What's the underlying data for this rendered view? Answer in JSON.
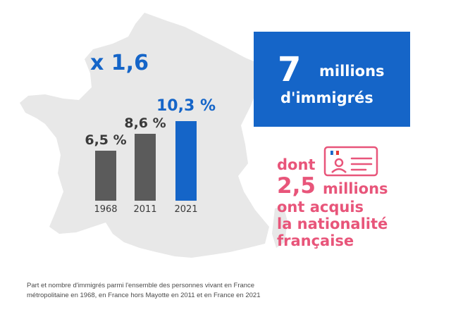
{
  "multiplier": "x 1,6",
  "colors": {
    "blue": "#1565c8",
    "gray_bar": "#5b5b5b",
    "map": "#e8e8e8",
    "pink": "#e8557a"
  },
  "chart_data": {
    "type": "bar",
    "categories": [
      "1968",
      "2011",
      "2021"
    ],
    "values": [
      6.5,
      8.6,
      10.3
    ],
    "value_labels": [
      "6,5 %",
      "8,6 %",
      "10,3 %"
    ],
    "highlight_index": 2
  },
  "stat_box": {
    "number": "7",
    "unit": "millions",
    "line2": "d'immigrés"
  },
  "naturalized": {
    "line1": "dont",
    "number": "2,5",
    "line2_rest": "millions",
    "line3": "ont acquis",
    "line4": "la nationalité",
    "line5": "française",
    "icon": "id-card-icon"
  },
  "footnote": {
    "line1": "Part et nombre d'immigrés parmi l'ensemble des personnes vivant en France",
    "line2": "métropolitaine en 1968, en France hors Mayotte en 2011 et en France en 2021"
  }
}
